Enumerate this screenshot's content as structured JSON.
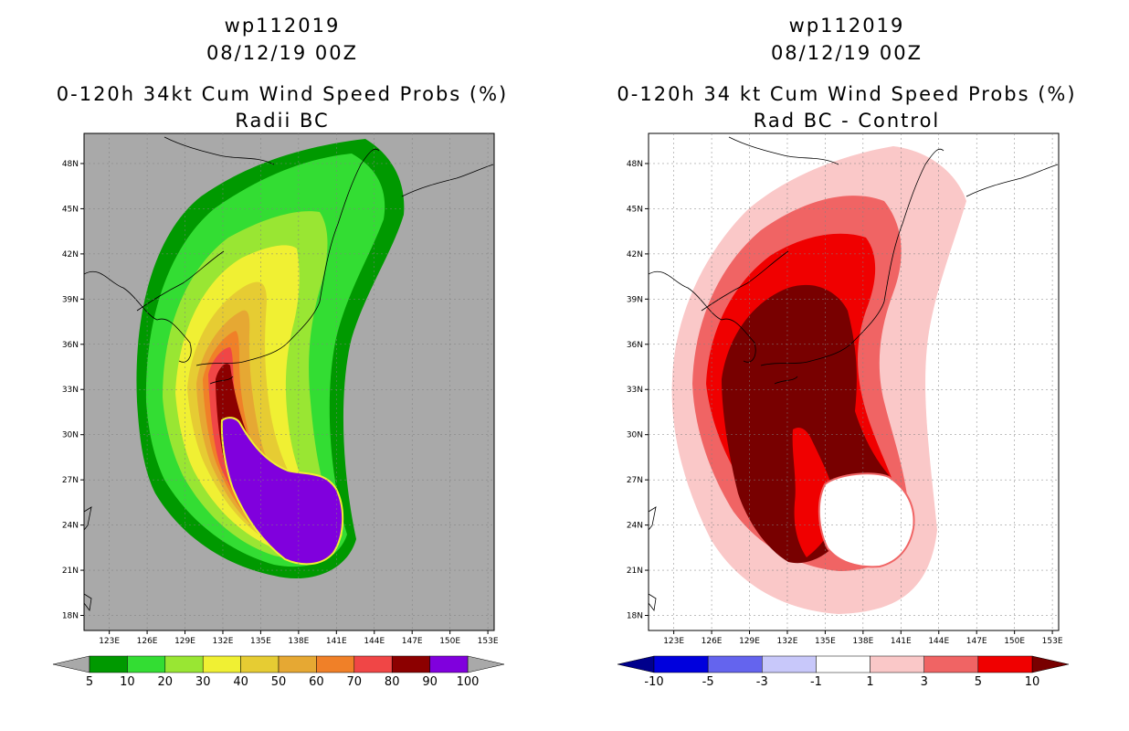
{
  "panels": [
    {
      "title_lines": [
        "wp112019",
        "08/12/19 00Z",
        "0-120h 34kt Cum Wind Speed Probs (%)",
        "Radii BC"
      ],
      "background": "#a9a9a9"
    },
    {
      "title_lines": [
        "wp112019",
        "08/12/19 00Z",
        "0-120h 34 kt Cum Wind Speed Probs (%)",
        "Rad BC - Control"
      ],
      "background": "#ffffff"
    }
  ],
  "chart_data": [
    {
      "type": "heatmap",
      "title": "0-120h 34kt Cum Wind Speed Probs (%)",
      "subtitle": "Radii BC",
      "storm": "wp112019",
      "datetime": "08/12/19 00Z",
      "x_ticks": [
        "123E",
        "126E",
        "129E",
        "132E",
        "135E",
        "138E",
        "141E",
        "144E",
        "147E",
        "150E",
        "153E"
      ],
      "y_ticks": [
        "48N",
        "45N",
        "42N",
        "39N",
        "36N",
        "33N",
        "30N",
        "27N",
        "24N",
        "21N",
        "18N"
      ],
      "xlim": [
        121,
        153.5
      ],
      "ylim": [
        17,
        50
      ],
      "colorbar": {
        "levels": [
          "5",
          "10",
          "20",
          "30",
          "40",
          "50",
          "60",
          "70",
          "80",
          "90",
          "100"
        ],
        "colors": [
          "#009900",
          "#33dd33",
          "#99e633",
          "#f0f033",
          "#e6cc33",
          "#e6a833",
          "#f08028",
          "#f04646",
          "#8c0000",
          "#8000dd"
        ],
        "end_colors": [
          "#a9a9a9",
          "#a9a9a9"
        ]
      }
    },
    {
      "type": "heatmap",
      "title": "0-120h 34 kt Cum Wind Speed Probs (%)",
      "subtitle": "Rad BC - Control",
      "storm": "wp112019",
      "datetime": "08/12/19 00Z",
      "x_ticks": [
        "123E",
        "126E",
        "129E",
        "132E",
        "135E",
        "138E",
        "141E",
        "144E",
        "147E",
        "150E",
        "153E"
      ],
      "y_ticks": [
        "48N",
        "45N",
        "42N",
        "39N",
        "36N",
        "33N",
        "30N",
        "27N",
        "24N",
        "21N",
        "18N"
      ],
      "xlim": [
        121,
        153.5
      ],
      "ylim": [
        17,
        50
      ],
      "colorbar": {
        "levels": [
          "-10",
          "-5",
          "-3",
          "-1",
          "1",
          "3",
          "5",
          "10"
        ],
        "colors": [
          "#0000dd",
          "#6464ee",
          "#c8c8fa",
          "#ffffff",
          "#fac8c8",
          "#f06464",
          "#f00000"
        ],
        "end_colors": [
          "#00008c",
          "#780000"
        ]
      }
    }
  ]
}
